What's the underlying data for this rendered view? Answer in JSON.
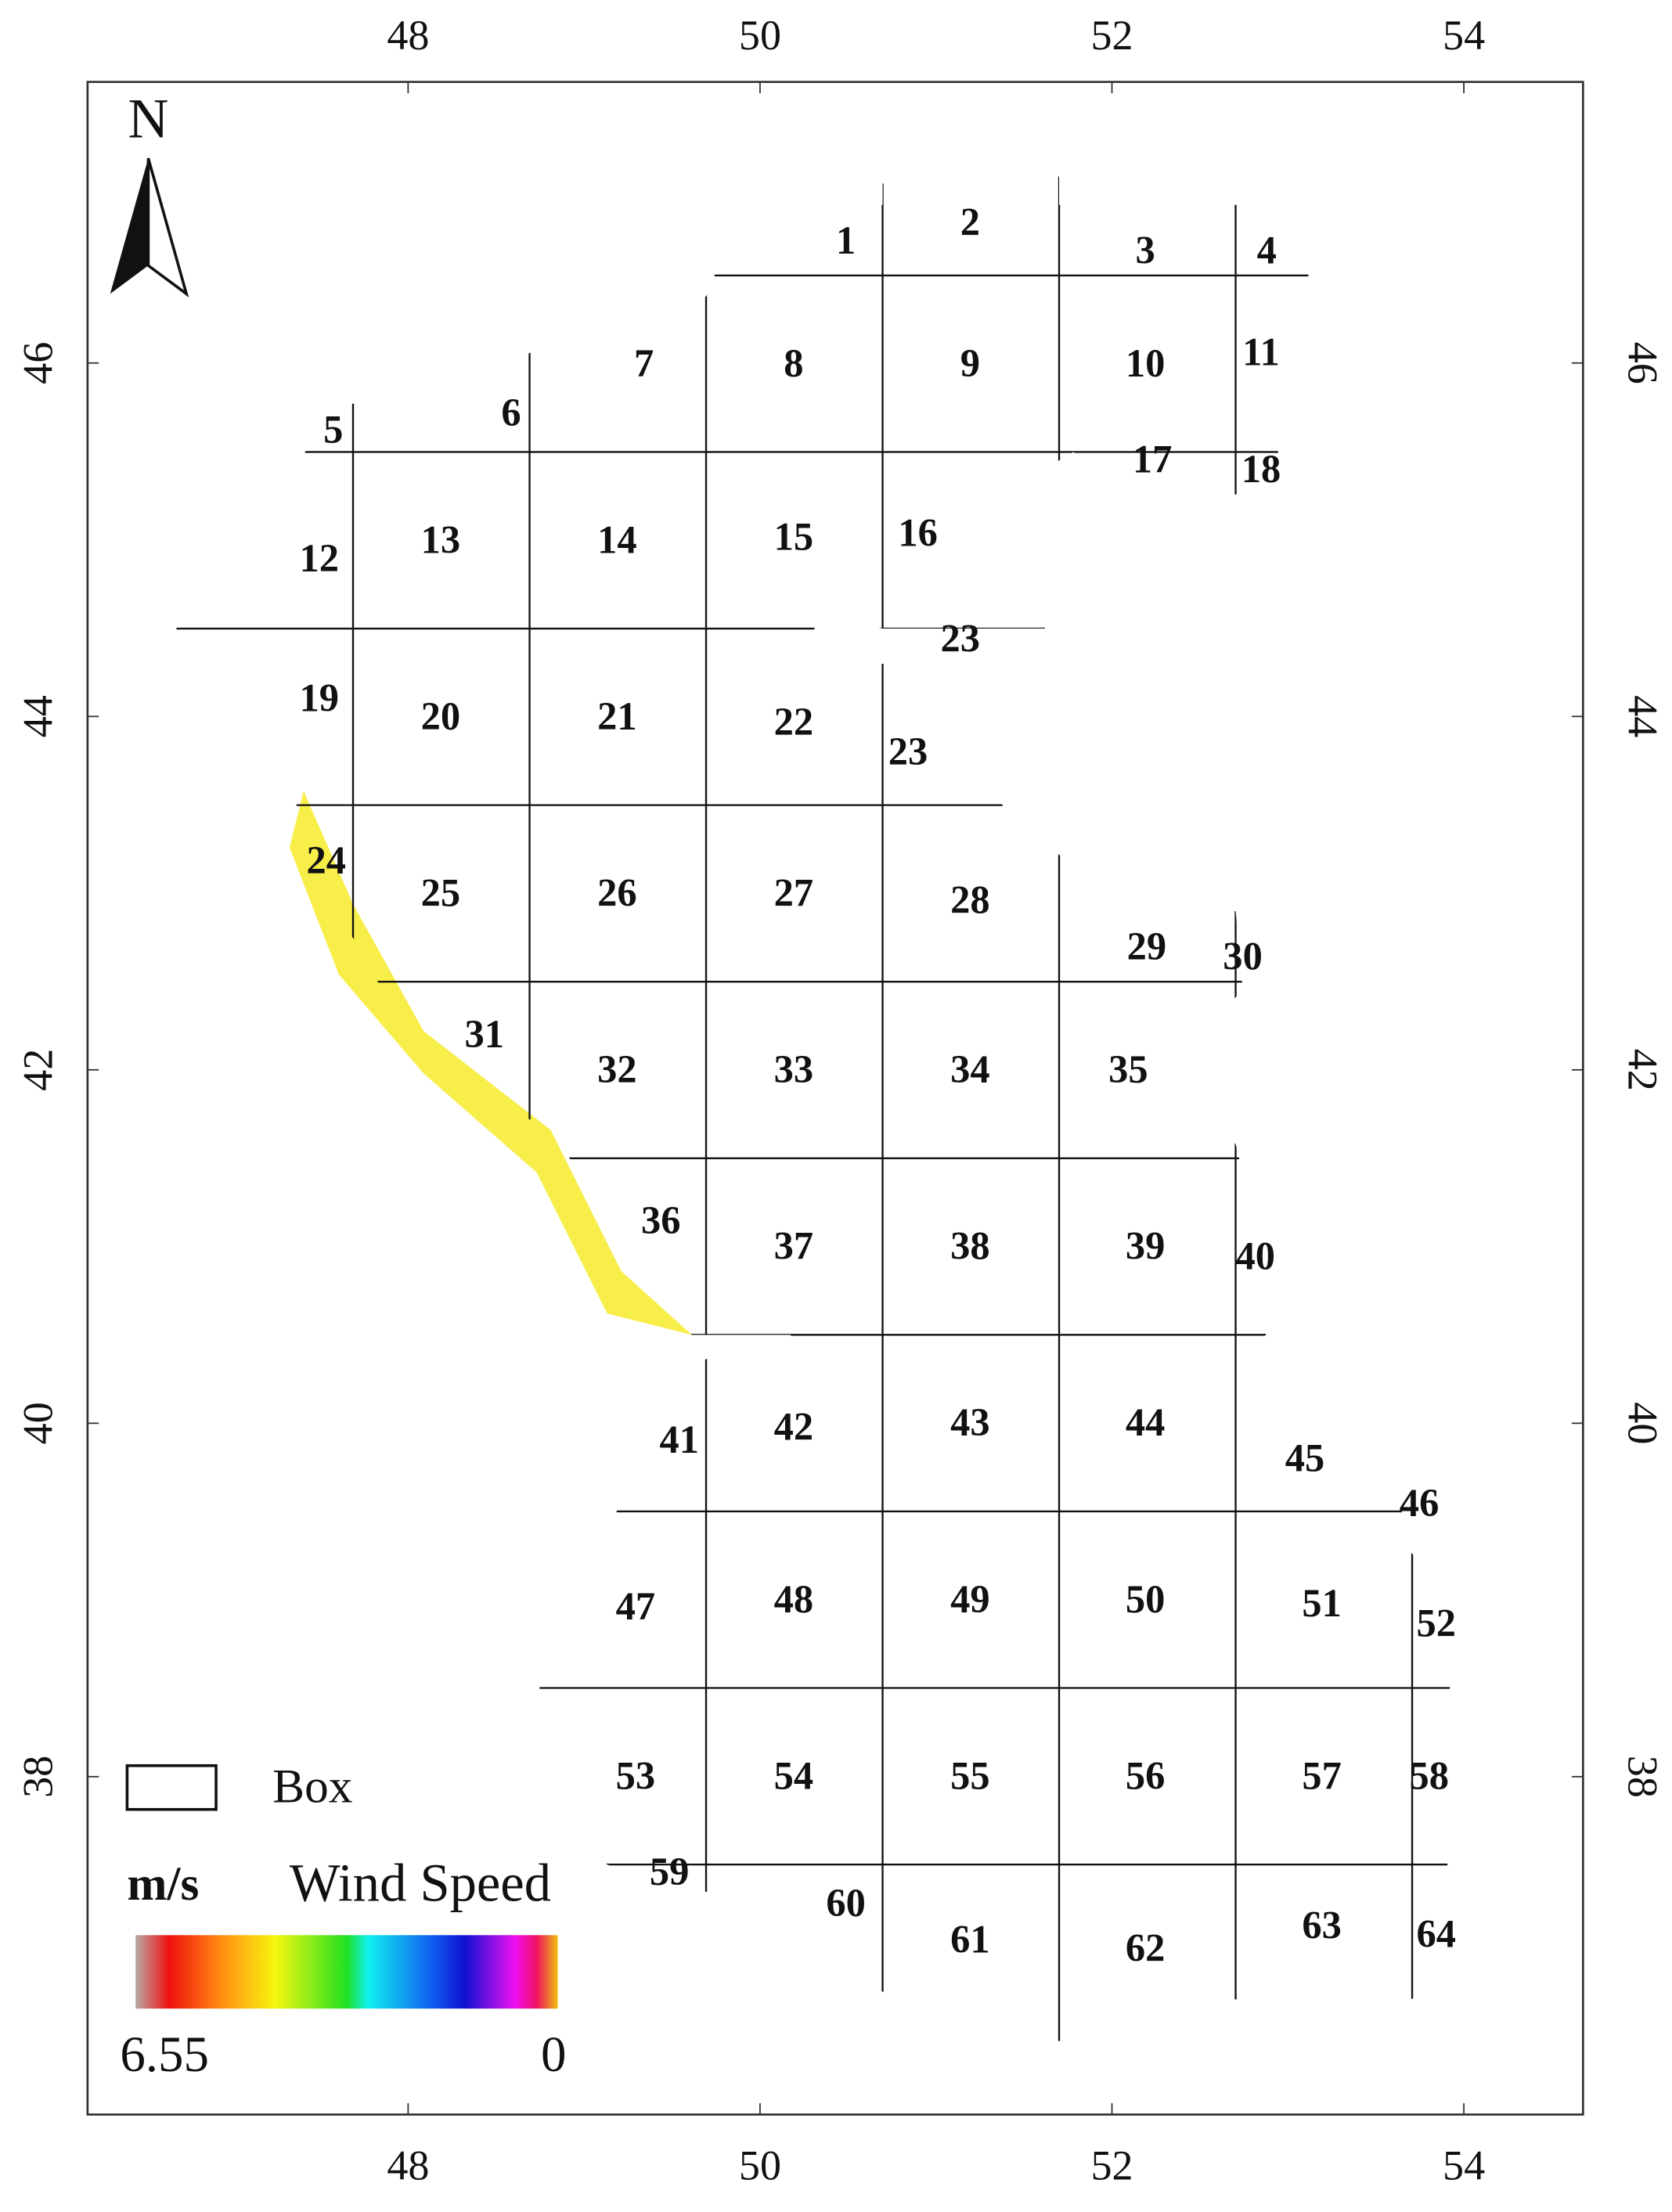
{
  "map": {
    "north": "N",
    "x_ticks": [
      48,
      50,
      52,
      54
    ],
    "y_ticks": [
      38,
      40,
      42,
      44,
      46
    ],
    "boxes": [
      "1",
      "2",
      "3",
      "4",
      "5",
      "6",
      "7",
      "8",
      "9",
      "10",
      "11",
      "12",
      "13",
      "14",
      "15",
      "16",
      "17",
      "18",
      "23",
      "19",
      "20",
      "21",
      "22",
      "23",
      "24",
      "25",
      "26",
      "27",
      "28",
      "29",
      "30",
      "31",
      "32",
      "33",
      "34",
      "35",
      "36",
      "37",
      "38",
      "39",
      "40",
      "41",
      "42",
      "43",
      "44",
      "45",
      "46",
      "47",
      "48",
      "49",
      "50",
      "51",
      "52",
      "53",
      "54",
      "55",
      "56",
      "57",
      "58",
      "59",
      "60",
      "61",
      "62",
      "63",
      "64"
    ],
    "legend": {
      "box": "Box",
      "unit": "m/s",
      "title": "Wind Speed",
      "colorbar_max": 6.55,
      "colorbar_min": 0
    }
  }
}
